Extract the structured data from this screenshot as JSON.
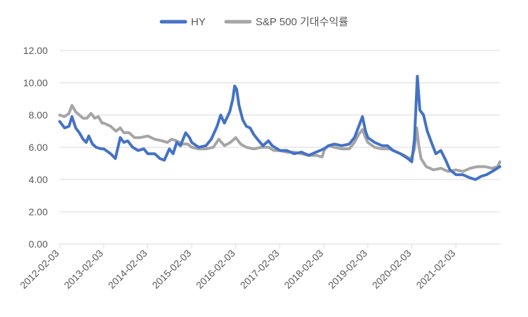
{
  "chart_data": {
    "type": "line",
    "title": "",
    "xlabel": "",
    "ylabel": "",
    "ylim": [
      0,
      12
    ],
    "y_ticks": [
      "0.00",
      "2.00",
      "4.00",
      "6.00",
      "8.00",
      "10.00",
      "12.00"
    ],
    "x_ticks": [
      "2012-02-03",
      "2013-02-03",
      "2014-02-03",
      "2015-02-03",
      "2016-02-03",
      "2017-02-03",
      "2018-02-03",
      "2019-02-03",
      "2020-02-03",
      "2021-02-03"
    ],
    "x_range": [
      "2012-02-03",
      "2022-02-03"
    ],
    "grid": "horizontal",
    "legend": "top",
    "series": [
      {
        "name": "HY",
        "color": "#4472C4",
        "points": [
          [
            "2012-02-03",
            7.6
          ],
          [
            "2012-03-15",
            7.2
          ],
          [
            "2012-04-20",
            7.3
          ],
          [
            "2012-05-15",
            7.9
          ],
          [
            "2012-06-15",
            7.2
          ],
          [
            "2012-07-15",
            6.9
          ],
          [
            "2012-08-15",
            6.5
          ],
          [
            "2012-09-10",
            6.3
          ],
          [
            "2012-10-01",
            6.7
          ],
          [
            "2012-11-01",
            6.2
          ],
          [
            "2012-12-01",
            6.0
          ],
          [
            "2013-01-15",
            5.9
          ],
          [
            "2013-02-03",
            5.9
          ],
          [
            "2013-04-01",
            5.6
          ],
          [
            "2013-05-10",
            5.3
          ],
          [
            "2013-06-20",
            6.6
          ],
          [
            "2013-07-20",
            6.3
          ],
          [
            "2013-08-20",
            6.4
          ],
          [
            "2013-10-01",
            6.0
          ],
          [
            "2013-11-15",
            5.8
          ],
          [
            "2014-01-01",
            5.9
          ],
          [
            "2014-02-03",
            5.6
          ],
          [
            "2014-04-01",
            5.6
          ],
          [
            "2014-05-15",
            5.3
          ],
          [
            "2014-06-20",
            5.2
          ],
          [
            "2014-08-01",
            5.9
          ],
          [
            "2014-09-01",
            5.6
          ],
          [
            "2014-10-01",
            6.3
          ],
          [
            "2014-11-01",
            6.1
          ],
          [
            "2014-12-15",
            6.9
          ],
          [
            "2015-01-15",
            6.6
          ],
          [
            "2015-02-03",
            6.3
          ],
          [
            "2015-04-01",
            6.0
          ],
          [
            "2015-06-01",
            6.1
          ],
          [
            "2015-07-15",
            6.5
          ],
          [
            "2015-09-01",
            7.3
          ],
          [
            "2015-10-01",
            8.0
          ],
          [
            "2015-11-01",
            7.5
          ],
          [
            "2015-12-15",
            8.2
          ],
          [
            "2016-01-10",
            9.0
          ],
          [
            "2016-01-25",
            9.8
          ],
          [
            "2016-02-10",
            9.6
          ],
          [
            "2016-03-01",
            8.6
          ],
          [
            "2016-04-01",
            7.7
          ],
          [
            "2016-05-01",
            7.3
          ],
          [
            "2016-06-01",
            7.2
          ],
          [
            "2016-07-01",
            6.8
          ],
          [
            "2016-08-01",
            6.5
          ],
          [
            "2016-09-15",
            6.1
          ],
          [
            "2016-11-01",
            6.4
          ],
          [
            "2016-12-01",
            6.1
          ],
          [
            "2017-02-03",
            5.8
          ],
          [
            "2017-04-01",
            5.8
          ],
          [
            "2017-06-01",
            5.6
          ],
          [
            "2017-08-01",
            5.7
          ],
          [
            "2017-10-01",
            5.5
          ],
          [
            "2017-12-01",
            5.7
          ],
          [
            "2018-02-03",
            5.9
          ],
          [
            "2018-03-15",
            6.1
          ],
          [
            "2018-05-01",
            6.2
          ],
          [
            "2018-07-01",
            6.1
          ],
          [
            "2018-09-01",
            6.2
          ],
          [
            "2018-10-15",
            6.6
          ],
          [
            "2018-11-20",
            7.3
          ],
          [
            "2018-12-20",
            7.9
          ],
          [
            "2019-01-15",
            7.0
          ],
          [
            "2019-02-03",
            6.6
          ],
          [
            "2019-04-01",
            6.3
          ],
          [
            "2019-06-01",
            6.1
          ],
          [
            "2019-07-15",
            6.1
          ],
          [
            "2019-09-01",
            5.8
          ],
          [
            "2019-11-01",
            5.6
          ],
          [
            "2020-01-01",
            5.3
          ],
          [
            "2020-02-03",
            5.1
          ],
          [
            "2020-02-25",
            6.5
          ],
          [
            "2020-03-20",
            10.4
          ],
          [
            "2020-04-10",
            8.3
          ],
          [
            "2020-05-10",
            8.0
          ],
          [
            "2020-06-10",
            7.0
          ],
          [
            "2020-07-20",
            6.2
          ],
          [
            "2020-08-20",
            5.6
          ],
          [
            "2020-10-01",
            5.8
          ],
          [
            "2020-11-10",
            5.2
          ],
          [
            "2020-12-15",
            4.6
          ],
          [
            "2021-02-03",
            4.3
          ],
          [
            "2021-04-01",
            4.3
          ],
          [
            "2021-06-01",
            4.1
          ],
          [
            "2021-07-15",
            4.0
          ],
          [
            "2021-09-01",
            4.2
          ],
          [
            "2021-10-15",
            4.3
          ],
          [
            "2021-12-01",
            4.5
          ],
          [
            "2022-02-03",
            4.8
          ]
        ]
      },
      {
        "name": "S&P 500 기대수익률",
        "color": "#A5A5A5",
        "points": [
          [
            "2012-02-03",
            8.0
          ],
          [
            "2012-03-15",
            7.9
          ],
          [
            "2012-04-20",
            8.1
          ],
          [
            "2012-05-15",
            8.6
          ],
          [
            "2012-06-15",
            8.2
          ],
          [
            "2012-07-15",
            8.0
          ],
          [
            "2012-08-15",
            7.8
          ],
          [
            "2012-09-15",
            7.8
          ],
          [
            "2012-10-20",
            8.1
          ],
          [
            "2012-11-20",
            7.8
          ],
          [
            "2012-12-20",
            7.9
          ],
          [
            "2013-01-20",
            7.5
          ],
          [
            "2013-02-03",
            7.5
          ],
          [
            "2013-04-01",
            7.3
          ],
          [
            "2013-05-15",
            7.0
          ],
          [
            "2013-06-20",
            7.2
          ],
          [
            "2013-07-20",
            6.9
          ],
          [
            "2013-09-01",
            6.9
          ],
          [
            "2013-10-15",
            6.6
          ],
          [
            "2013-12-01",
            6.6
          ],
          [
            "2014-02-03",
            6.7
          ],
          [
            "2014-04-01",
            6.5
          ],
          [
            "2014-06-01",
            6.4
          ],
          [
            "2014-07-15",
            6.3
          ],
          [
            "2014-08-20",
            6.5
          ],
          [
            "2014-10-01",
            6.4
          ],
          [
            "2014-11-15",
            6.2
          ],
          [
            "2015-01-01",
            6.2
          ],
          [
            "2015-02-03",
            6.0
          ],
          [
            "2015-04-01",
            5.9
          ],
          [
            "2015-06-01",
            5.9
          ],
          [
            "2015-08-01",
            6.0
          ],
          [
            "2015-09-15",
            6.5
          ],
          [
            "2015-11-01",
            6.1
          ],
          [
            "2015-12-20",
            6.3
          ],
          [
            "2016-02-03",
            6.6
          ],
          [
            "2016-03-15",
            6.2
          ],
          [
            "2016-05-01",
            6.0
          ],
          [
            "2016-07-01",
            5.9
          ],
          [
            "2016-09-01",
            6.0
          ],
          [
            "2016-11-01",
            6.0
          ],
          [
            "2016-12-15",
            5.8
          ],
          [
            "2017-02-03",
            5.8
          ],
          [
            "2017-04-01",
            5.7
          ],
          [
            "2017-06-01",
            5.7
          ],
          [
            "2017-08-01",
            5.6
          ],
          [
            "2017-10-01",
            5.5
          ],
          [
            "2017-12-01",
            5.5
          ],
          [
            "2018-01-20",
            5.4
          ],
          [
            "2018-02-10",
            5.9
          ],
          [
            "2018-03-15",
            6.1
          ],
          [
            "2018-05-01",
            6.0
          ],
          [
            "2018-07-01",
            5.9
          ],
          [
            "2018-09-01",
            5.9
          ],
          [
            "2018-10-15",
            6.3
          ],
          [
            "2018-11-20",
            6.8
          ],
          [
            "2018-12-20",
            7.1
          ],
          [
            "2019-01-15",
            6.6
          ],
          [
            "2019-02-03",
            6.3
          ],
          [
            "2019-04-01",
            6.0
          ],
          [
            "2019-06-01",
            5.9
          ],
          [
            "2019-08-01",
            5.9
          ],
          [
            "2019-10-01",
            5.7
          ],
          [
            "2019-12-01",
            5.5
          ],
          [
            "2020-01-15",
            5.3
          ],
          [
            "2020-02-03",
            5.4
          ],
          [
            "2020-02-25",
            5.9
          ],
          [
            "2020-03-15",
            7.2
          ],
          [
            "2020-04-01",
            6.1
          ],
          [
            "2020-04-20",
            5.3
          ],
          [
            "2020-06-01",
            4.8
          ],
          [
            "2020-08-01",
            4.6
          ],
          [
            "2020-10-01",
            4.7
          ],
          [
            "2020-12-01",
            4.5
          ],
          [
            "2021-02-03",
            4.6
          ],
          [
            "2021-04-01",
            4.5
          ],
          [
            "2021-06-01",
            4.7
          ],
          [
            "2021-08-01",
            4.8
          ],
          [
            "2021-10-01",
            4.8
          ],
          [
            "2021-12-01",
            4.7
          ],
          [
            "2022-01-15",
            4.8
          ],
          [
            "2022-02-03",
            5.1
          ]
        ]
      }
    ]
  }
}
